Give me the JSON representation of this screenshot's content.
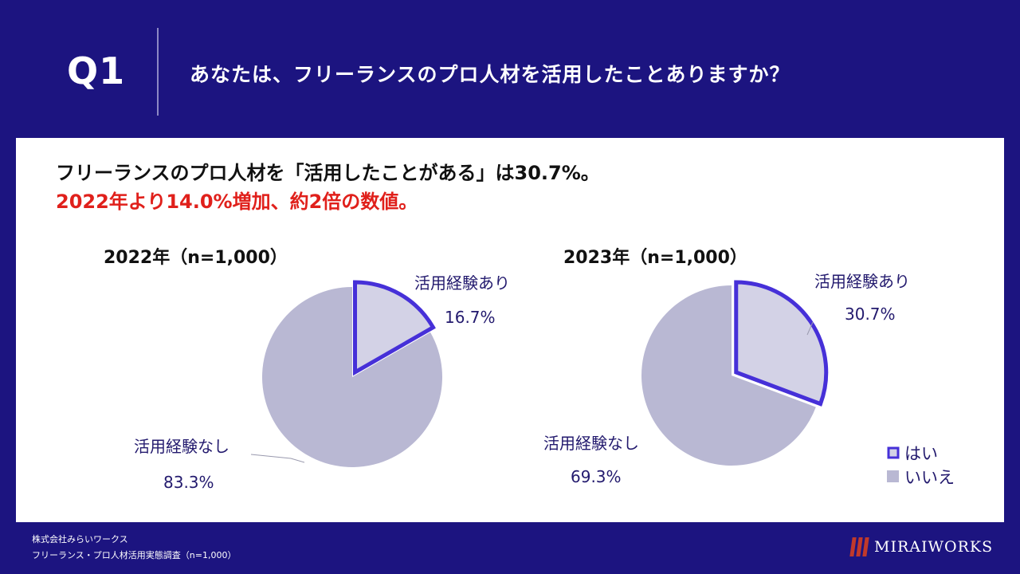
{
  "header": {
    "q_label": "Q1",
    "question": "あなたは、フリーランスのプロ人材を活用したことありますか？"
  },
  "summary": {
    "line1": "フリーランスのプロ人材を「活用したことがある」は30.7%。",
    "line2": "2022年より14.0%増加、約2倍の数値。"
  },
  "colors": {
    "background": "#1c1480",
    "yes_fill": "#d3d2e6",
    "yes_stroke": "#4630d8",
    "no_fill": "#b9b8d3",
    "highlight_red": "#e0201b",
    "label_color": "#231a6e"
  },
  "chart_data": [
    {
      "type": "pie",
      "title": "2022年（n=1,000）",
      "slices": [
        {
          "name": "活用経験あり",
          "value": 16.7,
          "label": "16.7%",
          "exploded": true
        },
        {
          "name": "活用経験なし",
          "value": 83.3,
          "label": "83.3%",
          "exploded": false
        }
      ]
    },
    {
      "type": "pie",
      "title": "2023年（n=1,000）",
      "slices": [
        {
          "name": "活用経験あり",
          "value": 30.7,
          "label": "30.7%",
          "exploded": true
        },
        {
          "name": "活用経験なし",
          "value": 69.3,
          "label": "69.3%",
          "exploded": false
        }
      ]
    }
  ],
  "legend": {
    "items": [
      {
        "label": "はい",
        "series": "yes"
      },
      {
        "label": "いいえ",
        "series": "no"
      }
    ]
  },
  "footer": {
    "company": "株式会社みらいワークス",
    "source": "フリーランス・プロ人材活用実態調査（n=1,000）",
    "logo_text": "MIRAIWORKS"
  }
}
